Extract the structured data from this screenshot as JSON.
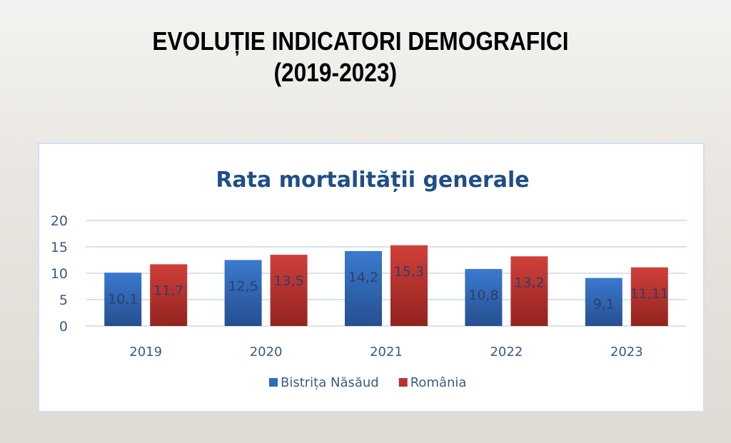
{
  "slide": {
    "title_line1": "EVOLUȚIE INDICATORI DEMOGRAFICI",
    "title_line2": "(2019-2023)"
  },
  "chart_data": {
    "type": "bar",
    "title": "Rata mortalității generale",
    "xlabel": "",
    "ylabel": "",
    "categories": [
      "2019",
      "2020",
      "2021",
      "2022",
      "2023"
    ],
    "series": [
      {
        "name": "Bistrița Năsăud",
        "color": "#2f6ab8",
        "values": [
          10.1,
          12.5,
          14.2,
          10.8,
          9.1
        ],
        "labels": [
          "10,1",
          "12,5",
          "14,2",
          "10,8",
          "9,1"
        ]
      },
      {
        "name": "România",
        "color": "#b8322f",
        "values": [
          11.7,
          13.5,
          15.3,
          13.2,
          11.11
        ],
        "labels": [
          "11,7",
          "13,5",
          "15,3",
          "13,2",
          "11,11"
        ]
      }
    ],
    "ylim": [
      0,
      20
    ],
    "yticks": [
      0,
      5,
      10,
      15,
      20
    ],
    "grid": true,
    "legend": "bottom"
  },
  "colors": {
    "title_blue": "#1f4e88",
    "axis_text": "#3a5a85",
    "data_label": "#2e3f66",
    "grid": "#d6e3f3"
  }
}
